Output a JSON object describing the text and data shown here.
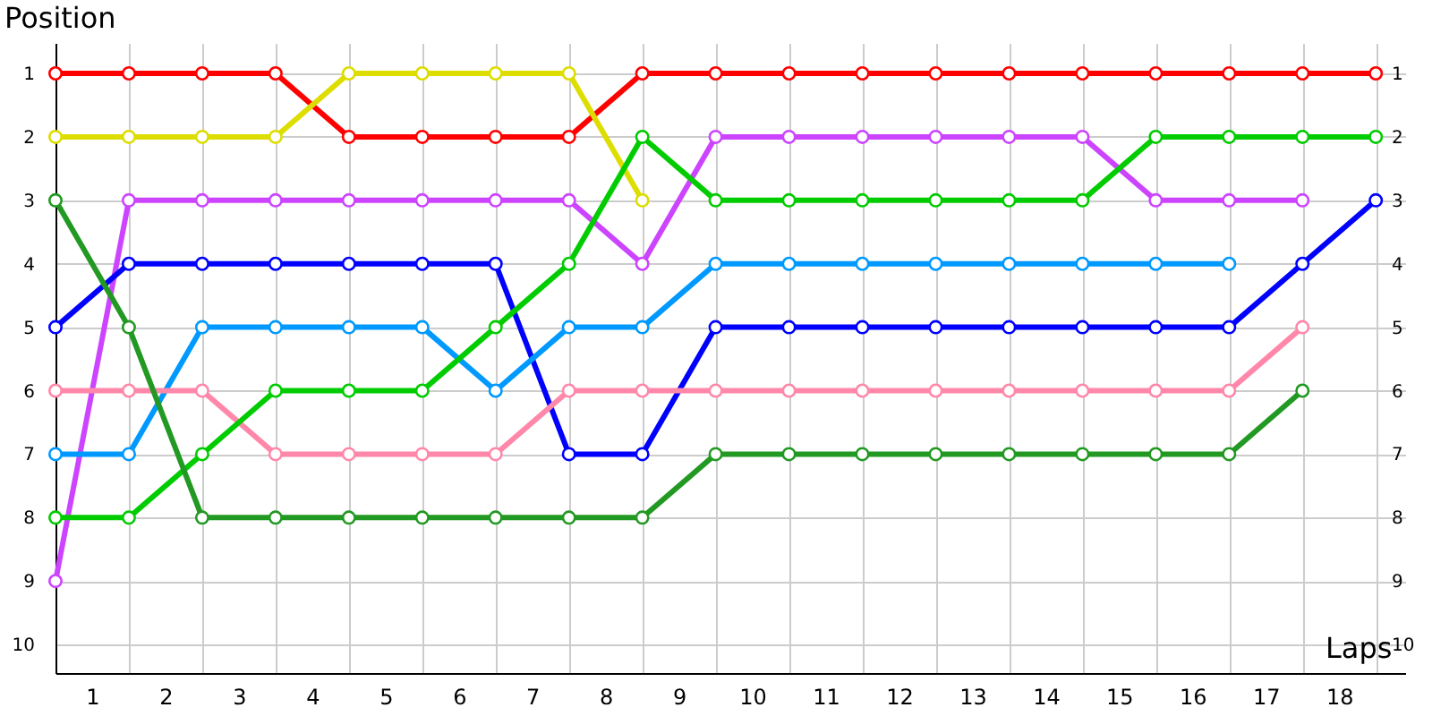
{
  "chart_data": {
    "type": "line",
    "xlabel": "Laps",
    "ylabel": "Position",
    "xlim": [
      0,
      18.4
    ],
    "ylim": [
      10.45,
      0.52
    ],
    "y2lim": [
      10.45,
      0.52
    ],
    "xticks": [
      {
        "value": 0,
        "label": null
      },
      {
        "value": 0.5,
        "label": "1"
      },
      {
        "value": 1,
        "label": null
      },
      {
        "value": 1.5,
        "label": "2"
      },
      {
        "value": 2,
        "label": null
      },
      {
        "value": 2.5,
        "label": "3"
      },
      {
        "value": 3,
        "label": null
      },
      {
        "value": 3.5,
        "label": "4"
      },
      {
        "value": 4,
        "label": null
      },
      {
        "value": 4.5,
        "label": "5"
      },
      {
        "value": 5,
        "label": null
      },
      {
        "value": 5.5,
        "label": "6"
      },
      {
        "value": 6,
        "label": null
      },
      {
        "value": 6.5,
        "label": "7"
      },
      {
        "value": 7,
        "label": null
      },
      {
        "value": 7.5,
        "label": "8"
      },
      {
        "value": 8,
        "label": null
      },
      {
        "value": 8.5,
        "label": "9"
      },
      {
        "value": 9,
        "label": null
      },
      {
        "value": 9.5,
        "label": "10"
      },
      {
        "value": 10,
        "label": null
      },
      {
        "value": 10.5,
        "label": "11"
      },
      {
        "value": 11,
        "label": null
      },
      {
        "value": 11.5,
        "label": "12"
      },
      {
        "value": 12,
        "label": null
      },
      {
        "value": 12.5,
        "label": "13"
      },
      {
        "value": 13,
        "label": null
      },
      {
        "value": 13.5,
        "label": "14"
      },
      {
        "value": 14,
        "label": null
      },
      {
        "value": 14.5,
        "label": "15"
      },
      {
        "value": 15,
        "label": null
      },
      {
        "value": 15.5,
        "label": "16"
      },
      {
        "value": 16,
        "label": null
      },
      {
        "value": 16.5,
        "label": "17"
      },
      {
        "value": 17,
        "label": null
      },
      {
        "value": 17.5,
        "label": "18"
      },
      {
        "value": 18,
        "label": null
      }
    ],
    "yticks": [
      1,
      2,
      3,
      4,
      5,
      6,
      7,
      8,
      9,
      10
    ],
    "y2ticks": [
      1,
      2,
      3,
      4,
      5,
      6,
      7,
      8,
      9,
      10
    ],
    "x": [
      0,
      1,
      2,
      3,
      4,
      5,
      6,
      7,
      8,
      9,
      10,
      11,
      12,
      13,
      14,
      15,
      16,
      17,
      18
    ],
    "grid": true,
    "legend": false,
    "marker": "circle",
    "line_style": "solid",
    "series": [
      {
        "color": "#ff0000",
        "values": [
          1,
          1,
          1,
          1,
          2,
          2,
          2,
          2,
          1,
          1,
          1,
          1,
          1,
          1,
          1,
          1,
          1,
          1,
          1
        ]
      },
      {
        "color": "#dddd00",
        "values": [
          2,
          2,
          2,
          2,
          1,
          1,
          1,
          1,
          3,
          null,
          null,
          null,
          null,
          null,
          null,
          null,
          null,
          null,
          null
        ]
      },
      {
        "color": "#cc44ff",
        "values": [
          9,
          3,
          3,
          3,
          3,
          3,
          3,
          3,
          4,
          2,
          2,
          2,
          2,
          2,
          2,
          3,
          3,
          3,
          null
        ]
      },
      {
        "color": "#0000ff",
        "values": [
          5,
          4,
          4,
          4,
          4,
          4,
          4,
          7,
          7,
          5,
          5,
          5,
          5,
          5,
          5,
          5,
          5,
          4,
          3
        ]
      },
      {
        "color": "#0099ff",
        "values": [
          7,
          7,
          5,
          5,
          5,
          5,
          6,
          5,
          5,
          4,
          4,
          4,
          4,
          4,
          4,
          4,
          4,
          null,
          null
        ]
      },
      {
        "color": "#ff88aa",
        "values": [
          6,
          6,
          6,
          7,
          7,
          7,
          7,
          6,
          6,
          6,
          6,
          6,
          6,
          6,
          6,
          6,
          6,
          5,
          null
        ]
      },
      {
        "color": "#00cc00",
        "values": [
          8,
          8,
          7,
          6,
          6,
          6,
          5,
          4,
          2,
          3,
          3,
          3,
          3,
          3,
          3,
          2,
          2,
          2,
          2
        ]
      },
      {
        "color": "#229922",
        "values": [
          3,
          5,
          8,
          8,
          8,
          8,
          8,
          8,
          8,
          7,
          7,
          7,
          7,
          7,
          7,
          7,
          7,
          6,
          null
        ]
      }
    ]
  }
}
